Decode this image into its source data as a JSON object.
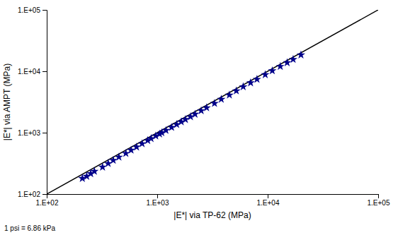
{
  "chart_data": {
    "type": "scatter",
    "x_label": "|E*| via TP-62 (MPa)",
    "y_label": "|E*| via AMPT (MPa)",
    "footnote": "1 psi = 6.86 kPa",
    "log": true,
    "xlim": [
      100,
      100000
    ],
    "ylim": [
      100,
      100000
    ],
    "xticks": [
      {
        "value": 100,
        "label": "1.E+02"
      },
      {
        "value": 1000,
        "label": "1.E+03"
      },
      {
        "value": 10000,
        "label": "1.E+04"
      },
      {
        "value": 100000,
        "label": "1.E+05"
      }
    ],
    "yticks": [
      {
        "value": 100,
        "label": "1.E+02"
      },
      {
        "value": 1000,
        "label": "1.E+03"
      },
      {
        "value": 10000,
        "label": "1.E+04"
      },
      {
        "value": 100000,
        "label": "1.E+05"
      }
    ],
    "series": [
      {
        "type": "scatter",
        "marker": "star",
        "color": "#00008B",
        "x": [
          210,
          230,
          250,
          270,
          320,
          360,
          400,
          450,
          520,
          580,
          650,
          730,
          820,
          880,
          970,
          1050,
          1100,
          1200,
          1350,
          1500,
          1650,
          1800,
          2000,
          2200,
          2500,
          2800,
          3300,
          3800,
          4500,
          5200,
          6000,
          7000,
          8000,
          9500,
          11000,
          13000,
          15000,
          17000,
          20000
        ],
        "values": [
          180,
          195,
          215,
          235,
          275,
          315,
          355,
          400,
          460,
          520,
          585,
          660,
          745,
          800,
          885,
          950,
          1000,
          1090,
          1220,
          1360,
          1500,
          1640,
          1820,
          2000,
          2280,
          2550,
          3000,
          3500,
          4100,
          4800,
          5600,
          6500,
          7400,
          8800,
          10200,
          12000,
          13800,
          15600,
          18500
        ]
      },
      {
        "type": "line",
        "color": "#000000",
        "x": [
          100,
          100000
        ],
        "values": [
          100,
          100000
        ]
      }
    ]
  }
}
